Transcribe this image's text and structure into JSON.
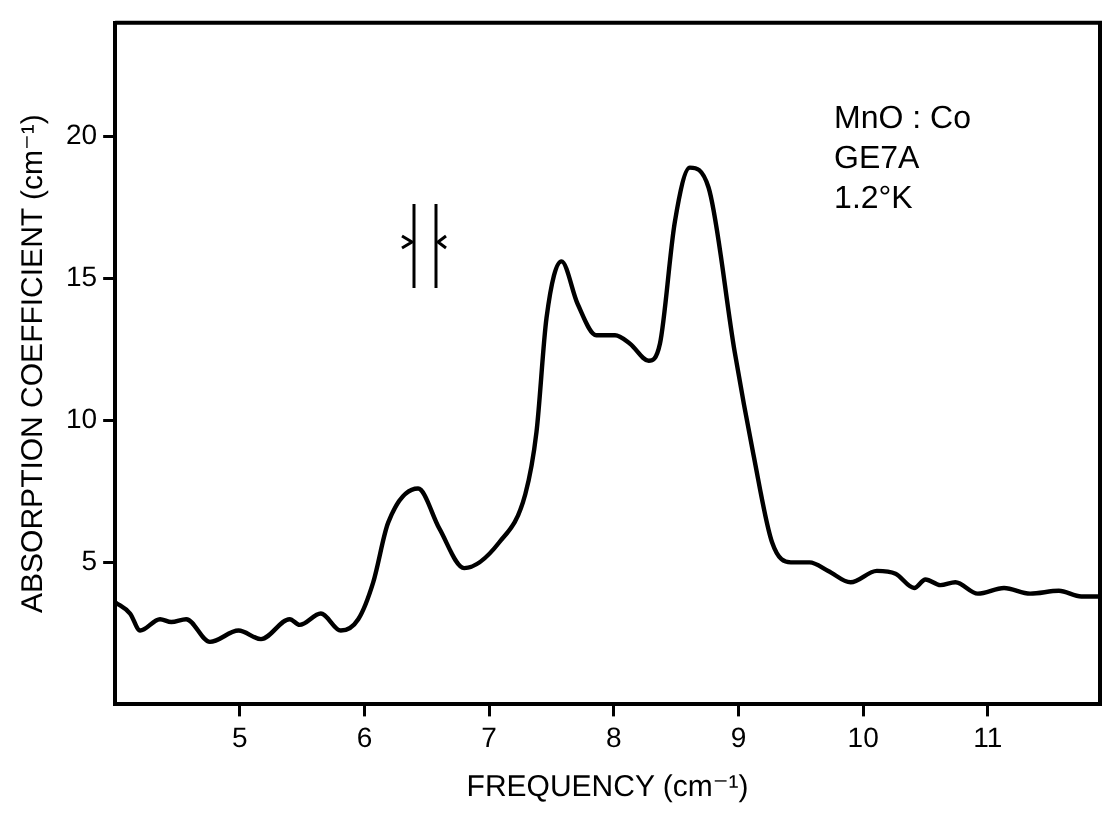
{
  "chart_data": {
    "type": "line",
    "xlabel": "FREQUENCY (cm⁻¹)",
    "ylabel": "ABSORPTION COEFFICIENT (cm⁻¹)",
    "annotations": [
      "MnO : Co",
      "GE7A",
      "1.2°K"
    ],
    "xlim": [
      4,
      11.9
    ],
    "xticks": [
      5,
      6,
      7,
      8,
      9,
      10,
      11
    ],
    "ylim": [
      0,
      24
    ],
    "yticks": [
      5,
      10,
      15,
      20
    ],
    "grid": false,
    "legend": false,
    "marker": "none",
    "line_style": "solid",
    "series": [
      {
        "color": "#000000",
        "x": [
          4.0,
          4.12,
          4.2,
          4.36,
          4.45,
          4.57,
          4.76,
          4.99,
          5.17,
          5.4,
          5.48,
          5.65,
          5.81,
          5.95,
          6.07,
          6.19,
          6.43,
          6.6,
          6.8,
          7.08,
          7.29,
          7.38,
          7.46,
          7.58,
          7.71,
          7.86,
          8.01,
          8.13,
          8.28,
          8.37,
          8.49,
          8.61,
          8.76,
          8.97,
          9.12,
          9.27,
          9.42,
          9.57,
          9.72,
          9.9,
          10.11,
          10.26,
          10.41,
          10.5,
          10.62,
          10.74,
          10.92,
          11.13,
          11.34,
          11.57,
          11.75,
          11.9
        ],
        "values": [
          3.6,
          3.2,
          2.6,
          3.0,
          2.9,
          3.0,
          2.2,
          2.6,
          2.3,
          3.0,
          2.8,
          3.2,
          2.6,
          3.0,
          4.3,
          6.4,
          7.6,
          6.2,
          4.8,
          5.7,
          7.4,
          9.6,
          13.6,
          15.6,
          14.1,
          13.0,
          13.0,
          12.7,
          12.1,
          12.7,
          17.0,
          18.9,
          18.2,
          12.4,
          8.8,
          5.7,
          5.0,
          5.0,
          4.7,
          4.3,
          4.7,
          4.6,
          4.1,
          4.4,
          4.2,
          4.3,
          3.9,
          4.1,
          3.9,
          4.0,
          3.8,
          3.8
        ]
      }
    ]
  }
}
